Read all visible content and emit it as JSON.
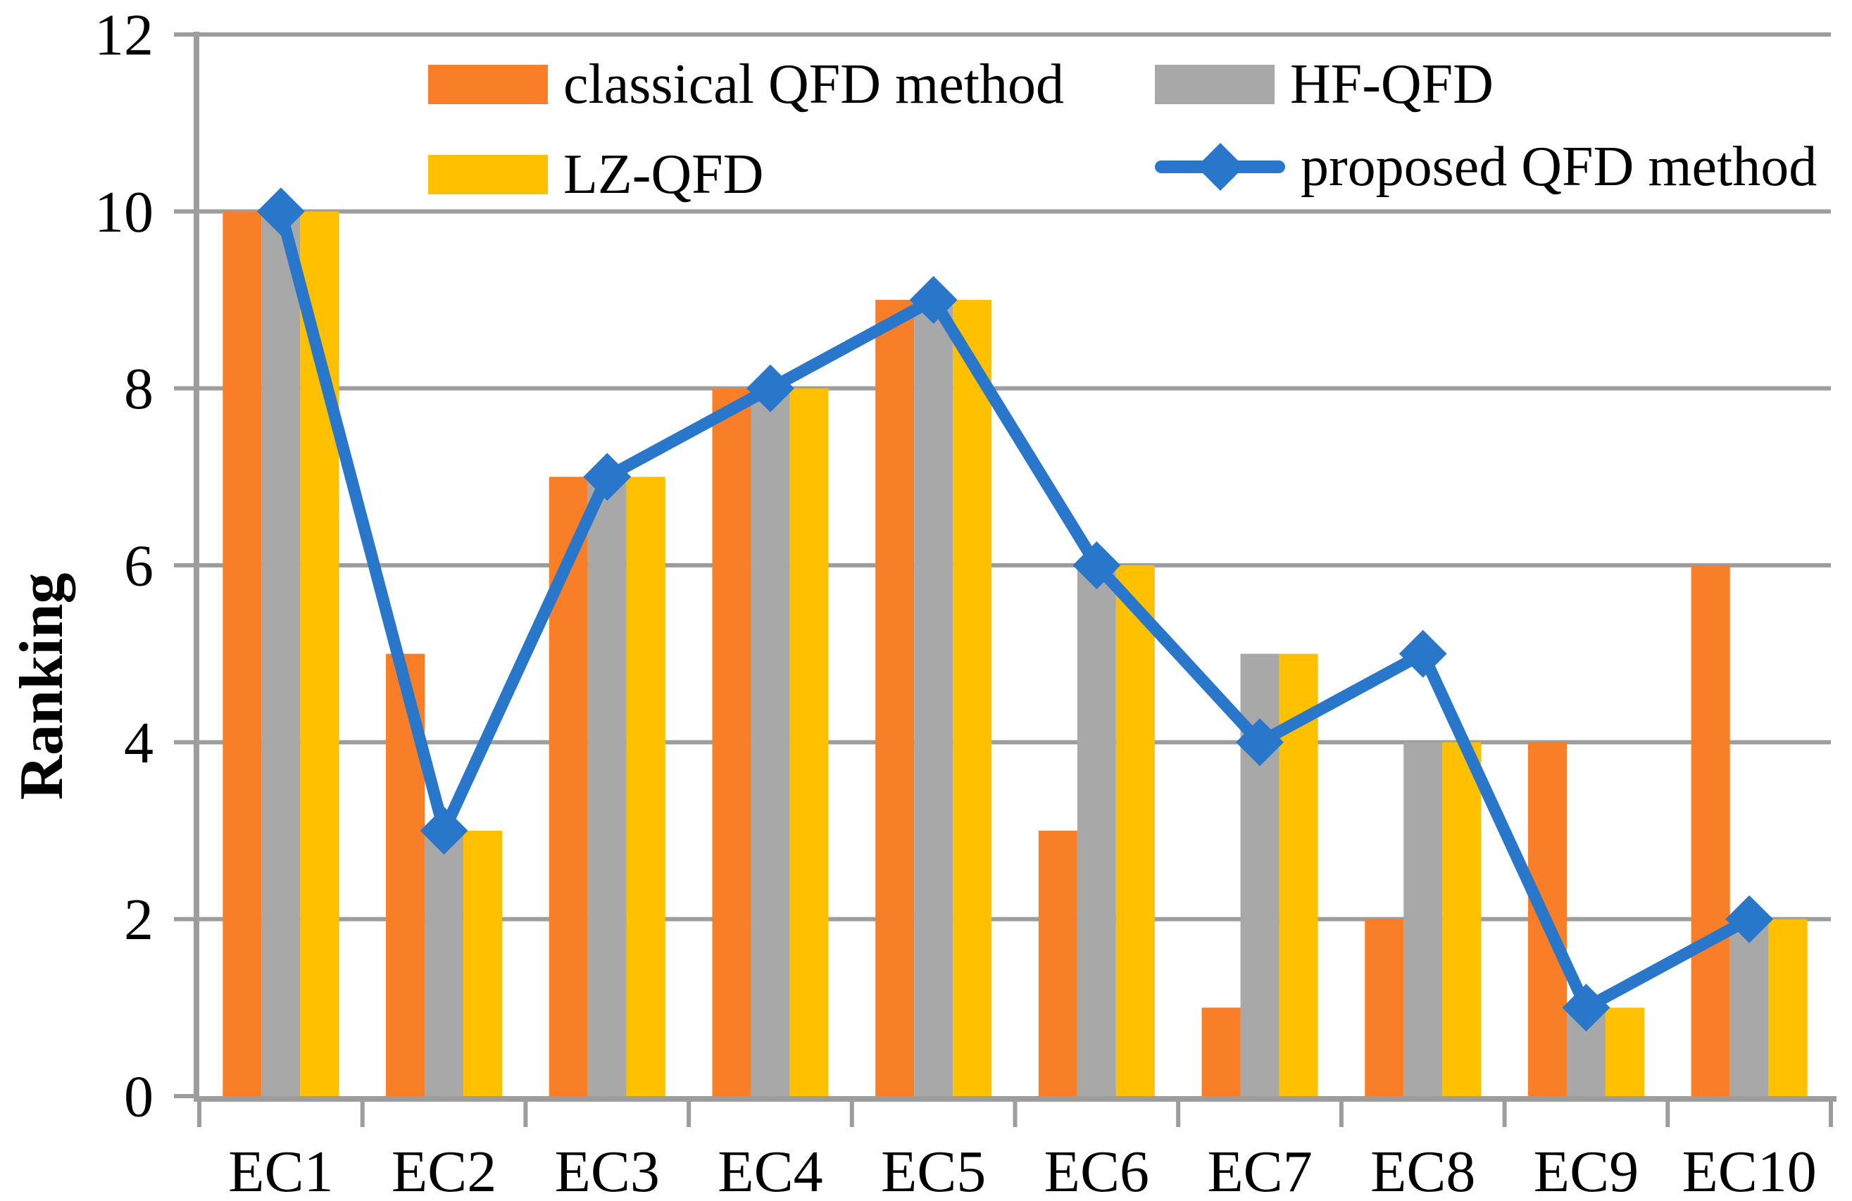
{
  "chart_data": {
    "type": "bar+line",
    "title": "",
    "categories": [
      "EC1",
      "EC2",
      "EC3",
      "EC4",
      "EC5",
      "EC6",
      "EC7",
      "EC8",
      "EC9",
      "EC10"
    ],
    "series": [
      {
        "name": "classical QFD method",
        "type": "bar",
        "color": "#F97E28",
        "values": [
          10,
          5,
          7,
          8,
          9,
          3,
          1,
          2,
          4,
          6
        ]
      },
      {
        "name": "HF-QFD",
        "type": "bar",
        "color": "#A8A8A8",
        "values": [
          10,
          3,
          7,
          8,
          9,
          6,
          5,
          4,
          1,
          2
        ]
      },
      {
        "name": "LZ-QFD",
        "type": "bar",
        "color": "#FFC000",
        "values": [
          10,
          3,
          7,
          8,
          9,
          6,
          5,
          4,
          1,
          2
        ]
      },
      {
        "name": "proposed QFD method",
        "type": "line",
        "color": "#2877CB",
        "values": [
          10,
          3,
          7,
          8,
          9,
          6,
          4,
          5,
          1,
          2
        ]
      }
    ],
    "xlabel": "",
    "ylabel": "Ranking",
    "ylim": [
      0,
      12
    ],
    "yticks": [
      0,
      2,
      4,
      6,
      8,
      10,
      12
    ],
    "grid": true,
    "legend_position": "top-inside",
    "style": {
      "background": "#FFFFFF",
      "grid_color": "#9D9D9D",
      "axis_color": "#9D9D9D",
      "text_color": "#000000"
    }
  }
}
